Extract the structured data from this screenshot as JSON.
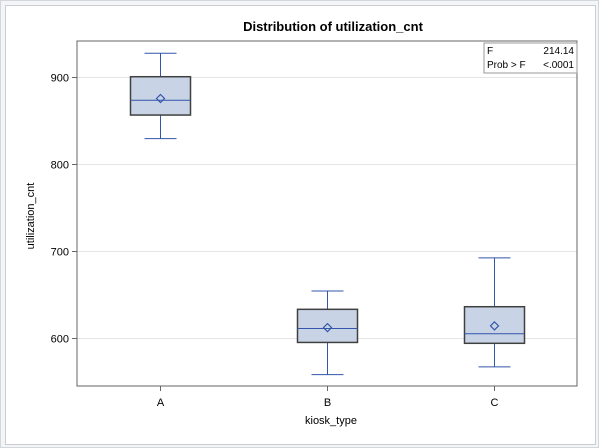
{
  "chart_data": {
    "type": "box",
    "title": "Distribution of utilization_cnt",
    "xlabel": "kiosk_type",
    "ylabel": "utilization_cnt",
    "ylim": [
      545,
      941
    ],
    "yticks": [
      600,
      700,
      800,
      900
    ],
    "grid": true,
    "categories": [
      "A",
      "B",
      "C"
    ],
    "boxes": [
      {
        "category": "A",
        "min": 829,
        "q1": 856,
        "median": 873,
        "mean": 875,
        "q3": 900,
        "max": 927
      },
      {
        "category": "B",
        "min": 558,
        "q1": 595,
        "median": 611,
        "mean": 612,
        "q3": 633,
        "max": 654
      },
      {
        "category": "C",
        "min": 567,
        "q1": 594,
        "median": 605,
        "mean": 614,
        "q3": 636,
        "max": 692
      }
    ],
    "stats": [
      {
        "label": "F",
        "value": "214.14"
      },
      {
        "label": "Prob > F",
        "value": "<.0001"
      }
    ],
    "colors": {
      "box_fill": "#c8d4e6",
      "box_edge": "#404040",
      "whisker": "#3355aa",
      "median": "#3355aa",
      "mean": "#3355aa",
      "grid": "#e6e6e6"
    }
  }
}
